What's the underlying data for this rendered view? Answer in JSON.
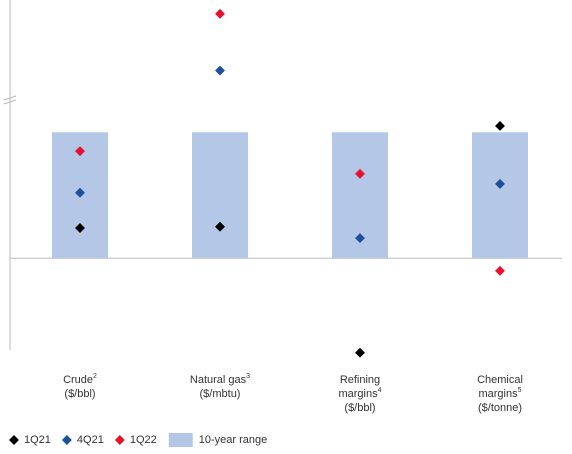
{
  "chart_data": {
    "type": "range-dot",
    "categories": [
      [
        "Crude"
      ],
      [
        "Natural gas"
      ],
      [
        "Refining",
        "margins"
      ],
      [
        "Chemical",
        "margins"
      ]
    ],
    "footnotes": [
      "2",
      "3",
      "4",
      "5"
    ],
    "units": [
      "($/bbl)",
      "($/mbtu)",
      "($/bbl)",
      "($/tonne)"
    ],
    "range": {
      "name": "10-year range",
      "color": "#b4c7e7",
      "low": [
        0,
        0,
        0,
        0
      ],
      "high": [
        1,
        1,
        1,
        1
      ]
    },
    "series": [
      {
        "name": "1Q21",
        "color": "#000000",
        "values": [
          0.24,
          0.25,
          -0.75,
          1.05
        ]
      },
      {
        "name": "4Q21",
        "color": "#1f4e9c",
        "values": [
          0.52,
          1.49,
          0.16,
          0.59
        ]
      },
      {
        "name": "1Q22",
        "color": "#e8112d",
        "values": [
          0.85,
          1.94,
          0.67,
          -0.1
        ]
      }
    ],
    "ylim": [
      -0.8,
      2.05
    ]
  }
}
